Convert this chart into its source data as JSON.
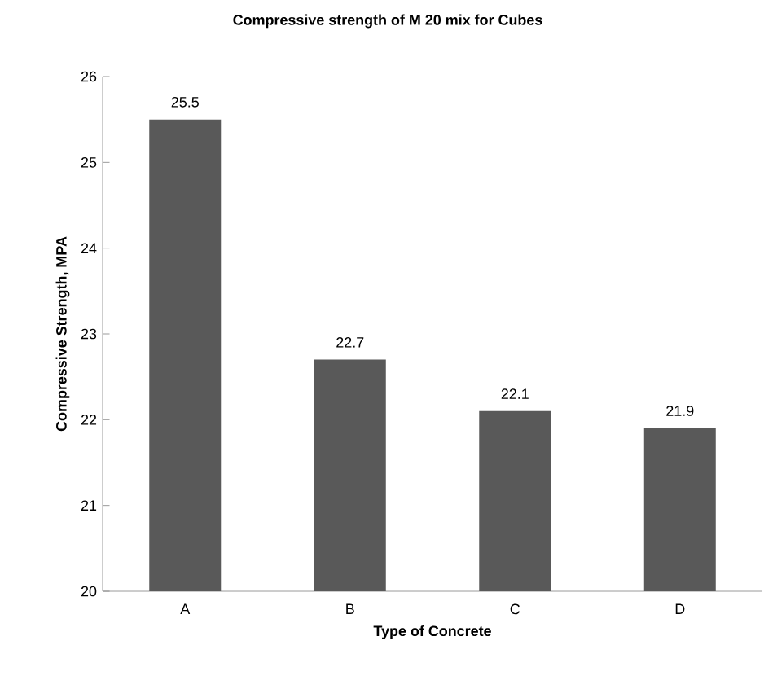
{
  "chart_data": {
    "type": "bar",
    "title": "Compressive strength of M 20 mix for Cubes",
    "xlabel": "Type of Concrete",
    "ylabel": "Compressive Strength, MPA",
    "categories": [
      "A",
      "B",
      "C",
      "D"
    ],
    "values": [
      25.5,
      22.7,
      22.1,
      21.9
    ],
    "color": "#595959",
    "ylim": [
      20,
      26
    ],
    "yticks": [
      20,
      21,
      22,
      23,
      24,
      25,
      26
    ],
    "data_labels": true
  }
}
